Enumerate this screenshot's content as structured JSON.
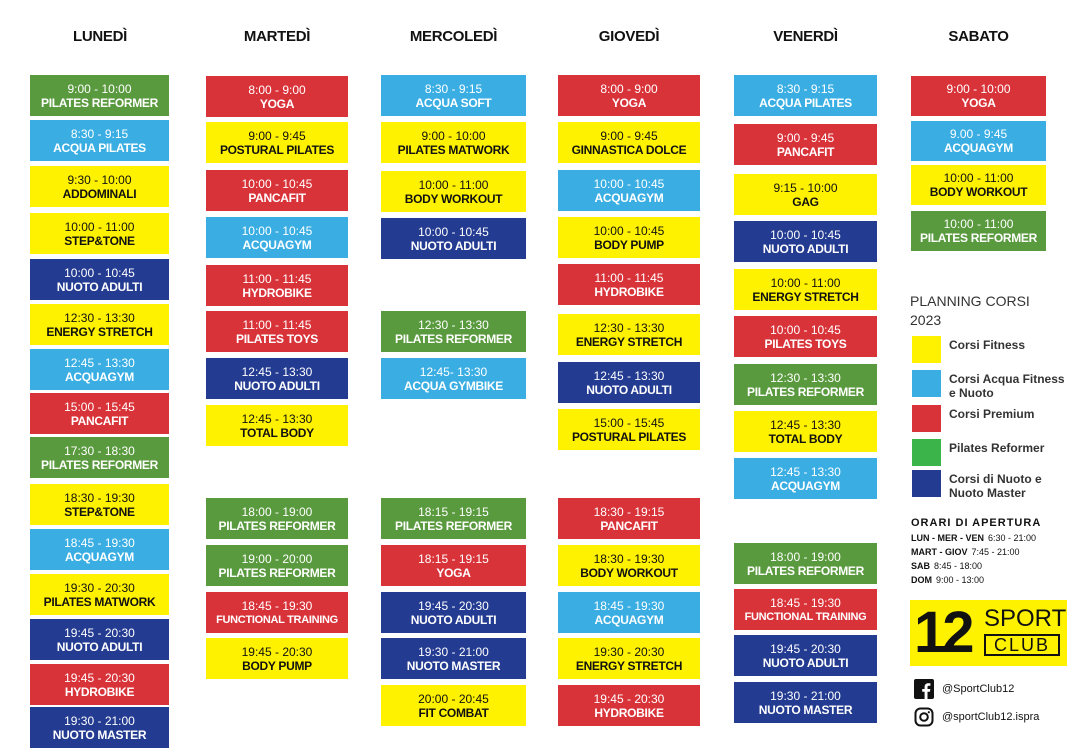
{
  "days": [
    {
      "name": "LUNEDÌ",
      "classes": [
        {
          "time": "9:00 - 10:00",
          "name": "PILATES REFORMER",
          "category": "pilates_reformer"
        },
        {
          "time": "8:30 - 9:15",
          "name": "ACQUA PILATES",
          "category": "acqua"
        },
        {
          "time": "9:30 - 10:00",
          "name": "ADDOMINALI",
          "category": "fitness"
        },
        {
          "time": "10:00 - 11:00",
          "name": "STEP&TONE",
          "category": "fitness"
        },
        {
          "time": "10:00 - 10:45",
          "name": "NUOTO ADULTI",
          "category": "nuoto"
        },
        {
          "time": "12:30 - 13:30",
          "name": "ENERGY STRETCH",
          "category": "fitness"
        },
        {
          "time": "12:45 - 13:30",
          "name": "ACQUAGYM",
          "category": "acqua"
        },
        {
          "time": "15:00 - 15:45",
          "name": "PANCAFIT",
          "category": "premium"
        },
        {
          "time": "17:30 - 18:30",
          "name": "PILATES REFORMER",
          "category": "pilates_reformer"
        },
        {
          "time": "18:30 - 19:30",
          "name": "STEP&TONE",
          "category": "fitness"
        },
        {
          "time": "18:45 - 19:30",
          "name": "ACQUAGYM",
          "category": "acqua"
        },
        {
          "time": "19:30 - 20:30",
          "name": "PILATES MATWORK",
          "category": "fitness"
        },
        {
          "time": "19:45 - 20:30",
          "name": "NUOTO ADULTI",
          "category": "nuoto"
        },
        {
          "time": "19:45 - 20:30",
          "name": "HYDROBIKE",
          "category": "premium"
        },
        {
          "time": "19:30 - 21:00",
          "name": "NUOTO MASTER",
          "category": "nuoto"
        }
      ]
    },
    {
      "name": "MARTEDÌ",
      "classes": [
        {
          "time": "8:00 - 9:00",
          "name": "YOGA",
          "category": "premium"
        },
        {
          "time": "9:00 - 9:45",
          "name": "POSTURAL PILATES",
          "category": "fitness"
        },
        {
          "time": "10:00 - 10:45",
          "name": "PANCAFIT",
          "category": "premium"
        },
        {
          "time": "10:00 - 10:45",
          "name": "ACQUAGYM",
          "category": "acqua"
        },
        {
          "time": "11:00 - 11:45",
          "name": "HYDROBIKE",
          "category": "premium"
        },
        {
          "time": "11:00 - 11:45",
          "name": "PILATES TOYS",
          "category": "premium"
        },
        {
          "time": "12:45 - 13:30",
          "name": "NUOTO ADULTI",
          "category": "nuoto"
        },
        {
          "time": "12:45 - 13:30",
          "name": "TOTAL BODY",
          "category": "fitness"
        },
        {
          "time": "18:00 - 19:00",
          "name": "PILATES REFORMER",
          "category": "pilates_reformer"
        },
        {
          "time": "19:00 - 20:00",
          "name": "PILATES REFORMER",
          "category": "pilates_reformer"
        },
        {
          "time": "18:45 - 19:30",
          "name": "FUNCTIONAL TRAINING",
          "category": "premium"
        },
        {
          "time": "19:45 - 20:30",
          "name": "BODY PUMP",
          "category": "fitness"
        }
      ]
    },
    {
      "name": "MERCOLEDÌ",
      "classes": [
        {
          "time": "8:30 - 9:15",
          "name": "ACQUA SOFT",
          "category": "acqua"
        },
        {
          "time": "9:00 - 10:00",
          "name": "PILATES MATWORK",
          "category": "fitness"
        },
        {
          "time": "10:00 - 11:00",
          "name": "BODY WORKOUT",
          "category": "fitness"
        },
        {
          "time": "10:00 - 10:45",
          "name": "NUOTO ADULTI",
          "category": "nuoto"
        },
        {
          "time": "12:30 - 13:30",
          "name": "PILATES REFORMER",
          "category": "pilates_reformer"
        },
        {
          "time": "12:45- 13:30",
          "name": "ACQUA GYMBIKE",
          "category": "acqua"
        },
        {
          "time": "18:15 - 19:15",
          "name": "PILATES REFORMER",
          "category": "pilates_reformer"
        },
        {
          "time": "18:15 - 19:15",
          "name": "YOGA",
          "category": "premium"
        },
        {
          "time": "19:45 - 20:30",
          "name": "NUOTO ADULTI",
          "category": "nuoto"
        },
        {
          "time": "19:30 - 21:00",
          "name": "NUOTO MASTER",
          "category": "nuoto"
        },
        {
          "time": "20:00 - 20:45",
          "name": "FIT COMBAT",
          "category": "fitness"
        }
      ]
    },
    {
      "name": "GIOVEDÌ",
      "classes": [
        {
          "time": "8:00 - 9:00",
          "name": "YOGA",
          "category": "premium"
        },
        {
          "time": "9:00 - 9:45",
          "name": "GINNASTICA DOLCE",
          "category": "fitness"
        },
        {
          "time": "10:00 - 10:45",
          "name": "ACQUAGYM",
          "category": "acqua"
        },
        {
          "time": "10:00 - 10:45",
          "name": "BODY PUMP",
          "category": "fitness"
        },
        {
          "time": "11:00 - 11:45",
          "name": "HYDROBIKE",
          "category": "premium"
        },
        {
          "time": "12:30 - 13:30",
          "name": "ENERGY STRETCH",
          "category": "fitness"
        },
        {
          "time": "12:45 - 13:30",
          "name": "NUOTO ADULTI",
          "category": "nuoto"
        },
        {
          "time": "15:00 - 15:45",
          "name": "POSTURAL PILATES",
          "category": "fitness"
        },
        {
          "time": "18:30 - 19:15",
          "name": "PANCAFIT",
          "category": "premium"
        },
        {
          "time": "18:30 - 19:30",
          "name": "BODY  WORKOUT",
          "category": "fitness"
        },
        {
          "time": "18:45 - 19:30",
          "name": "ACQUAGYM",
          "category": "acqua"
        },
        {
          "time": "19:30 - 20:30",
          "name": "ENERGY STRETCH",
          "category": "fitness"
        },
        {
          "time": "19:45 - 20:30",
          "name": "HYDROBIKE",
          "category": "premium"
        }
      ]
    },
    {
      "name": "VENERDÌ",
      "classes": [
        {
          "time": "8:30 - 9:15",
          "name": "ACQUA PILATES",
          "category": "acqua"
        },
        {
          "time": "9:00 - 9:45",
          "name": "PANCAFIT",
          "category": "premium"
        },
        {
          "time": "9:15 - 10:00",
          "name": "GAG",
          "category": "fitness"
        },
        {
          "time": "10:00 - 10:45",
          "name": "NUOTO ADULTI",
          "category": "nuoto"
        },
        {
          "time": "10:00 - 11:00",
          "name": "ENERGY STRETCH",
          "category": "fitness"
        },
        {
          "time": "10:00 - 10:45",
          "name": "PILATES TOYS",
          "category": "premium"
        },
        {
          "time": "12:30 - 13:30",
          "name": "PILATES REFORMER",
          "category": "pilates_reformer"
        },
        {
          "time": "12:45 - 13:30",
          "name": "TOTAL BODY",
          "category": "fitness"
        },
        {
          "time": "12:45 - 13:30",
          "name": "ACQUAGYM",
          "category": "acqua"
        },
        {
          "time": "18:00 - 19:00",
          "name": "PILATES REFORMER",
          "category": "pilates_reformer"
        },
        {
          "time": "18:45 - 19:30",
          "name": "FUNCTIONAL TRAINING",
          "category": "premium"
        },
        {
          "time": "19:45 - 20:30",
          "name": "NUOTO ADULTI",
          "category": "nuoto"
        },
        {
          "time": "19:30 - 21:00",
          "name": "NUOTO MASTER",
          "category": "nuoto"
        }
      ]
    },
    {
      "name": "SABATO",
      "classes": [
        {
          "time": "9:00 - 10:00",
          "name": "YOGA",
          "category": "premium"
        },
        {
          "time": "9.00 - 9:45",
          "name": "ACQUAGYM",
          "category": "acqua"
        },
        {
          "time": "10:00 - 11:00",
          "name": "BODY WORKOUT",
          "category": "fitness"
        },
        {
          "time": "10:00 - 11:00",
          "name": "PILATES REFORMER",
          "category": "pilates_reformer"
        }
      ]
    }
  ],
  "colors": {
    "fitness": "#fff200",
    "acqua": "#3aaee3",
    "premium": "#d9333a",
    "pilates_reformer": "#5a9a3e",
    "nuoto": "#233b91",
    "legend_reformer": "#3bb54a"
  },
  "legend": {
    "title_line1": "PLANNING CORSI",
    "title_line2": "2023",
    "items": [
      {
        "category": "fitness",
        "label": "Corsi Fitness"
      },
      {
        "category": "acqua",
        "label": "Corsi Acqua Fitness e Nuoto"
      },
      {
        "category": "premium",
        "label": "Corsi Premium"
      },
      {
        "category": "legend_reformer",
        "label": "Pilates Reformer"
      },
      {
        "category": "nuoto",
        "label": "Corsi di Nuoto e Nuoto Master"
      }
    ]
  },
  "opening_hours": {
    "title": "ORARI DI APERTURA",
    "lines": [
      {
        "days": "LUN - MER - VEN",
        "hours": "6:30 - 21:00"
      },
      {
        "days": "MART - GIOV",
        "hours": "7:45 - 21:00"
      },
      {
        "days": "SAB",
        "hours": "8:45 - 18:00"
      },
      {
        "days": "DOM",
        "hours": "9:00 - 13:00"
      }
    ]
  },
  "logo": {
    "number": "12",
    "word1": "SPORT",
    "word2": "CLUB"
  },
  "social": {
    "facebook": "@SportClub12",
    "instagram": "@sportClub12.ispra",
    "facebook_icon": "facebook-icon",
    "instagram_icon": "instagram-icon"
  }
}
